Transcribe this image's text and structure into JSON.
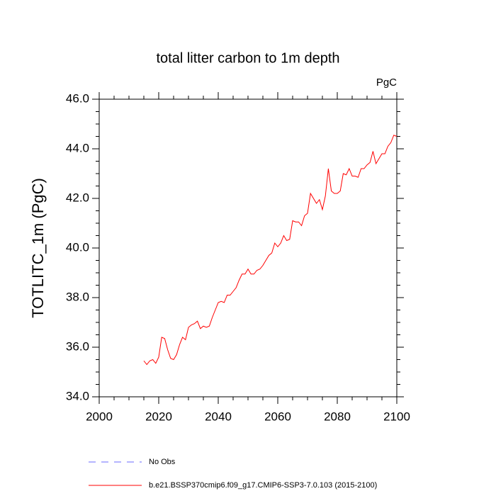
{
  "chart_data": {
    "type": "line",
    "title": "total litter carbon to 1m depth",
    "units": "PgC",
    "y_label": "TOTLITC_1m  (PgC)",
    "x": [
      2015,
      2016,
      2017,
      2018,
      2019,
      2020,
      2021,
      2022,
      2023,
      2024,
      2025,
      2026,
      2027,
      2028,
      2029,
      2030,
      2031,
      2032,
      2033,
      2034,
      2035,
      2036,
      2037,
      2038,
      2039,
      2040,
      2041,
      2042,
      2043,
      2044,
      2045,
      2046,
      2047,
      2048,
      2049,
      2050,
      2051,
      2052,
      2053,
      2054,
      2055,
      2056,
      2057,
      2058,
      2059,
      2060,
      2061,
      2062,
      2063,
      2064,
      2065,
      2066,
      2067,
      2068,
      2069,
      2070,
      2071,
      2072,
      2073,
      2074,
      2075,
      2076,
      2077,
      2078,
      2079,
      2080,
      2081,
      2082,
      2083,
      2084,
      2085,
      2086,
      2087,
      2088,
      2089,
      2090,
      2091,
      2092,
      2093,
      2094,
      2095,
      2096,
      2097,
      2098,
      2099,
      2100
    ],
    "series": [
      {
        "name": "b.e21.BSSP370cmip6.f09_g17.CMIP6-SSP3-7.0.103 (2015-2100)",
        "color": "#ff0000",
        "values": [
          35.45,
          35.3,
          35.45,
          35.5,
          35.35,
          35.6,
          36.4,
          36.35,
          35.9,
          35.55,
          35.5,
          35.7,
          36.1,
          36.4,
          36.3,
          36.8,
          36.9,
          36.95,
          37.05,
          36.75,
          36.85,
          36.8,
          36.85,
          37.2,
          37.5,
          37.8,
          37.85,
          37.8,
          38.1,
          38.1,
          38.25,
          38.4,
          38.7,
          38.95,
          38.95,
          39.15,
          38.95,
          38.95,
          39.1,
          39.15,
          39.3,
          39.5,
          39.7,
          39.8,
          40.2,
          40.05,
          40.2,
          40.5,
          40.3,
          40.35,
          41.1,
          41.05,
          41.05,
          40.9,
          41.3,
          41.4,
          42.2,
          42.0,
          41.8,
          41.95,
          41.55,
          42.1,
          43.2,
          42.3,
          42.2,
          42.2,
          42.3,
          43.0,
          42.95,
          43.2,
          42.9,
          42.9,
          42.85,
          43.2,
          43.2,
          43.35,
          43.45,
          43.9,
          43.4,
          43.6,
          43.8,
          43.8,
          44.1,
          44.25,
          44.55,
          44.5
        ]
      }
    ],
    "obs_legend": {
      "name": "No Obs",
      "color": "#6a6aff",
      "style": "dashed"
    },
    "xlim": [
      2000,
      2100
    ],
    "xticks": [
      2000,
      2020,
      2040,
      2060,
      2080,
      2100
    ],
    "xminorticks": [
      2005,
      2010,
      2015,
      2025,
      2030,
      2035,
      2045,
      2050,
      2055,
      2065,
      2070,
      2075,
      2085,
      2090,
      2095
    ],
    "ylim": [
      34,
      46
    ],
    "yticks": [
      {
        "value": 34,
        "label": "34.0"
      },
      {
        "value": 36,
        "label": "36.0"
      },
      {
        "value": 38,
        "label": "38.0"
      },
      {
        "value": 40,
        "label": "40.0"
      },
      {
        "value": 42,
        "label": "42.0"
      },
      {
        "value": 44,
        "label": "44.0"
      },
      {
        "value": 46,
        "label": "46.0"
      }
    ],
    "yminorticks": [
      34.5,
      35,
      35.5,
      36.5,
      37,
      37.5,
      38.5,
      39,
      39.5,
      40.5,
      41,
      41.5,
      42.5,
      43,
      43.5,
      44.5,
      45,
      45.5
    ]
  }
}
